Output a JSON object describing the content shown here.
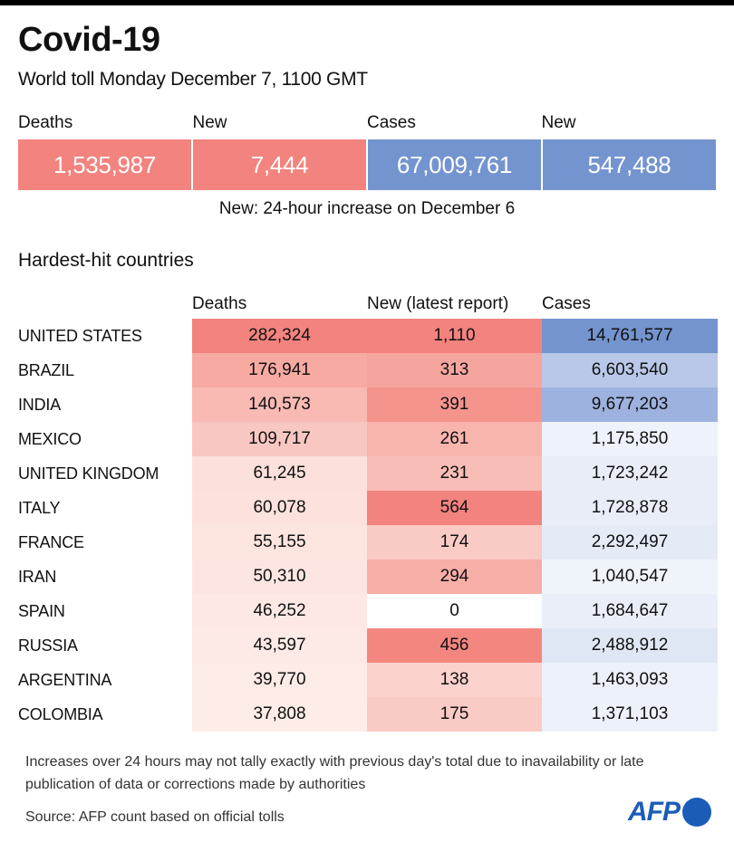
{
  "header": {
    "title": "Covid-19",
    "subtitle": "World toll Monday December 7, 1100 GMT"
  },
  "world": {
    "labels": [
      "Deaths",
      "New",
      "Cases",
      "New"
    ],
    "values": [
      "1,535,987",
      "7,444",
      "67,009,761",
      "547,488"
    ],
    "colors": [
      "#f2837e",
      "#f2837e",
      "#7494cf",
      "#7494cf"
    ],
    "note": "New: 24-hour increase on December 6"
  },
  "section_title": "Hardest-hit countries",
  "chart_data": {
    "type": "table",
    "title": "Hardest-hit countries",
    "columns": [
      "Deaths",
      "New (latest report)",
      "Cases"
    ],
    "rows": [
      {
        "country": "UNITED STATES",
        "deaths": "282,324",
        "new": "1,110",
        "cases": "14,761,577",
        "deaths_fill": "#f2837e",
        "new_fill": "#f2837e",
        "cases_fill": "#7494cf"
      },
      {
        "country": "BRAZIL",
        "deaths": "176,941",
        "new": "313",
        "cases": "6,603,540",
        "deaths_fill": "#f7aaa2",
        "new_fill": "#f6a59e",
        "cases_fill": "#b9c8e8"
      },
      {
        "country": "INDIA",
        "deaths": "140,573",
        "new": "391",
        "cases": "9,677,203",
        "deaths_fill": "#f8bab3",
        "new_fill": "#f4948d",
        "cases_fill": "#9db2de"
      },
      {
        "country": "MEXICO",
        "deaths": "109,717",
        "new": "261",
        "cases": "1,175,850",
        "deaths_fill": "#f9c7c1",
        "new_fill": "#f8b5ae",
        "cases_fill": "#eef2fa"
      },
      {
        "country": "UNITED KINGDOM",
        "deaths": "61,245",
        "new": "231",
        "cases": "1,723,242",
        "deaths_fill": "#fce0db",
        "new_fill": "#f8bdb6",
        "cases_fill": "#e8edf8"
      },
      {
        "country": "ITALY",
        "deaths": "60,078",
        "new": "564",
        "cases": "1,728,878",
        "deaths_fill": "#fce1dc",
        "new_fill": "#f2837e",
        "cases_fill": "#e8edf8"
      },
      {
        "country": "FRANCE",
        "deaths": "55,155",
        "new": "174",
        "cases": "2,292,497",
        "deaths_fill": "#fce4df",
        "new_fill": "#facac4",
        "cases_fill": "#e4eaf6"
      },
      {
        "country": "IRAN",
        "deaths": "50,310",
        "new": "294",
        "cases": "1,040,547",
        "deaths_fill": "#fde6e2",
        "new_fill": "#f7aea7",
        "cases_fill": "#eff3fa"
      },
      {
        "country": "SPAIN",
        "deaths": "46,252",
        "new": "0",
        "cases": "1,684,647",
        "deaths_fill": "#fde8e4",
        "new_fill": "#ffffff",
        "cases_fill": "#e9eef8"
      },
      {
        "country": "RUSSIA",
        "deaths": "43,597",
        "new": "456",
        "cases": "2,488,912",
        "deaths_fill": "#fde9e5",
        "new_fill": "#f3877f",
        "cases_fill": "#e0e7f4"
      },
      {
        "country": "ARGENTINA",
        "deaths": "39,770",
        "new": "138",
        "cases": "1,463,093",
        "deaths_fill": "#fdebe7",
        "new_fill": "#fbd2cd",
        "cases_fill": "#ecf0f9"
      },
      {
        "country": "COLOMBIA",
        "deaths": "37,808",
        "new": "175",
        "cases": "1,371,103",
        "deaths_fill": "#fdece8",
        "new_fill": "#facac4",
        "cases_fill": "#edf1f9"
      }
    ]
  },
  "footer": {
    "note": "Increases over 24 hours may not tally exactly with previous day's total due to inavailability or late publication of data or corrections made by authorities",
    "source": "Source: AFP count based on official tolls",
    "logo_text": "AFP",
    "logo_color": "#1b5cb8"
  }
}
